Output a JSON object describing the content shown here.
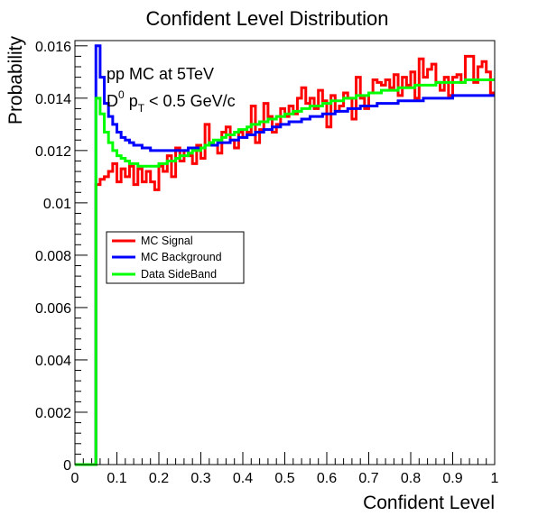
{
  "chart_data": {
    "type": "line",
    "title": "Confident Level Distribution",
    "xlabel": "Confident Level",
    "ylabel": "Probability",
    "xlim": [
      0,
      1
    ],
    "ylim": [
      0,
      0.0162
    ],
    "x_ticks": [
      0,
      0.1,
      0.2,
      0.3,
      0.4,
      0.5,
      0.6,
      0.7,
      0.8,
      0.9,
      1
    ],
    "x_tick_labels": [
      "0",
      "0.1",
      "0.2",
      "0.3",
      "0.4",
      "0.5",
      "0.6",
      "0.7",
      "0.8",
      "0.9",
      "1"
    ],
    "y_ticks": [
      0,
      0.002,
      0.004,
      0.006,
      0.008,
      0.01,
      0.012,
      0.014,
      0.016
    ],
    "y_tick_labels": [
      "0",
      "0.002",
      "0.004",
      "0.006",
      "0.008",
      "0.01",
      "0.012",
      "0.014",
      "0.016"
    ],
    "grid": false,
    "legend_position": "middle-left",
    "annotations": {
      "line1": "pp MC at 5TeV",
      "line2_main": "D",
      "line2_sup": "0",
      "line2_p": " p",
      "line2_sub": "T",
      "line2_rest": " < 0.5 GeV/c"
    },
    "bin_width": 0.01,
    "bin_start": 0,
    "series": [
      {
        "name": "MC Signal",
        "color": "#ff0000",
        "values": [
          0,
          0,
          0,
          0,
          0,
          0.0107,
          0.0109,
          0.011,
          0.0112,
          0.0115,
          0.0108,
          0.0113,
          0.011,
          0.0114,
          0.0107,
          0.0113,
          0.0108,
          0.0112,
          0.0108,
          0.0105,
          0.0114,
          0.0112,
          0.0118,
          0.011,
          0.0121,
          0.0116,
          0.012,
          0.0118,
          0.0115,
          0.0122,
          0.0117,
          0.013,
          0.0123,
          0.0122,
          0.0119,
          0.0127,
          0.0129,
          0.0124,
          0.0121,
          0.0127,
          0.0125,
          0.0127,
          0.0137,
          0.0123,
          0.0128,
          0.0138,
          0.0133,
          0.0127,
          0.013,
          0.0136,
          0.0133,
          0.0137,
          0.0134,
          0.014,
          0.0144,
          0.0138,
          0.014,
          0.0136,
          0.0143,
          0.0139,
          0.0129,
          0.0141,
          0.0135,
          0.0137,
          0.0142,
          0.014,
          0.0132,
          0.0148,
          0.014,
          0.0136,
          0.0142,
          0.0147,
          0.0146,
          0.0145,
          0.0147,
          0.0144,
          0.0149,
          0.0141,
          0.0148,
          0.0145,
          0.015,
          0.014,
          0.0155,
          0.0148,
          0.0151,
          0.0153,
          0.0146,
          0.0143,
          0.0148,
          0.0141,
          0.0148,
          0.0149,
          0.0146,
          0.0156,
          0.0156,
          0.0146,
          0.0152,
          0.0154,
          0.015,
          0.0142
        ]
      },
      {
        "name": "MC Background",
        "color": "#0000ff",
        "values": [
          0,
          0,
          0,
          0,
          0,
          0.016,
          0.0148,
          0.0138,
          0.0133,
          0.013,
          0.0127,
          0.0125,
          0.0124,
          0.0123,
          0.0122,
          0.0122,
          0.0121,
          0.0121,
          0.012,
          0.012,
          0.012,
          0.012,
          0.012,
          0.012,
          0.012,
          0.012,
          0.012,
          0.0121,
          0.0121,
          0.0121,
          0.0121,
          0.0122,
          0.0122,
          0.0122,
          0.0123,
          0.0123,
          0.0123,
          0.0124,
          0.0124,
          0.0125,
          0.0125,
          0.0126,
          0.0126,
          0.0127,
          0.0127,
          0.0128,
          0.0128,
          0.0129,
          0.0129,
          0.013,
          0.013,
          0.0131,
          0.0131,
          0.0131,
          0.0132,
          0.0132,
          0.0133,
          0.0133,
          0.0133,
          0.0134,
          0.0134,
          0.0134,
          0.0135,
          0.0135,
          0.0135,
          0.0136,
          0.0136,
          0.0136,
          0.0137,
          0.0137,
          0.0137,
          0.0137,
          0.0138,
          0.0138,
          0.0138,
          0.0138,
          0.0138,
          0.0139,
          0.0139,
          0.0139,
          0.0139,
          0.0139,
          0.0139,
          0.014,
          0.014,
          0.014,
          0.014,
          0.014,
          0.014,
          0.014,
          0.0141,
          0.0141,
          0.0141,
          0.0141,
          0.0141,
          0.0141,
          0.0141,
          0.0141,
          0.0141,
          0.0141
        ]
      },
      {
        "name": "Data SideBand",
        "color": "#00ff00",
        "values": [
          0,
          0,
          0,
          0,
          0,
          0.014,
          0.0134,
          0.0127,
          0.0123,
          0.012,
          0.0118,
          0.0117,
          0.0116,
          0.0115,
          0.0115,
          0.0114,
          0.0114,
          0.0114,
          0.0114,
          0.0114,
          0.0115,
          0.0115,
          0.0116,
          0.0116,
          0.0117,
          0.0118,
          0.0118,
          0.0119,
          0.012,
          0.012,
          0.0121,
          0.0122,
          0.0123,
          0.0124,
          0.0124,
          0.0125,
          0.0126,
          0.0126,
          0.0127,
          0.0128,
          0.0128,
          0.0129,
          0.013,
          0.013,
          0.0131,
          0.0131,
          0.0132,
          0.0132,
          0.0133,
          0.0133,
          0.0134,
          0.0134,
          0.0135,
          0.0135,
          0.0136,
          0.0136,
          0.0137,
          0.0137,
          0.0137,
          0.0138,
          0.0138,
          0.0139,
          0.0139,
          0.0139,
          0.014,
          0.014,
          0.014,
          0.0141,
          0.0141,
          0.0141,
          0.0142,
          0.0142,
          0.0142,
          0.0143,
          0.0143,
          0.0143,
          0.0143,
          0.0144,
          0.0144,
          0.0144,
          0.0144,
          0.0145,
          0.0145,
          0.0145,
          0.0145,
          0.0145,
          0.0146,
          0.0146,
          0.0146,
          0.0146,
          0.0146,
          0.0146,
          0.0146,
          0.0147,
          0.0147,
          0.0147,
          0.0147,
          0.0147,
          0.0147,
          0.0147
        ]
      }
    ]
  }
}
